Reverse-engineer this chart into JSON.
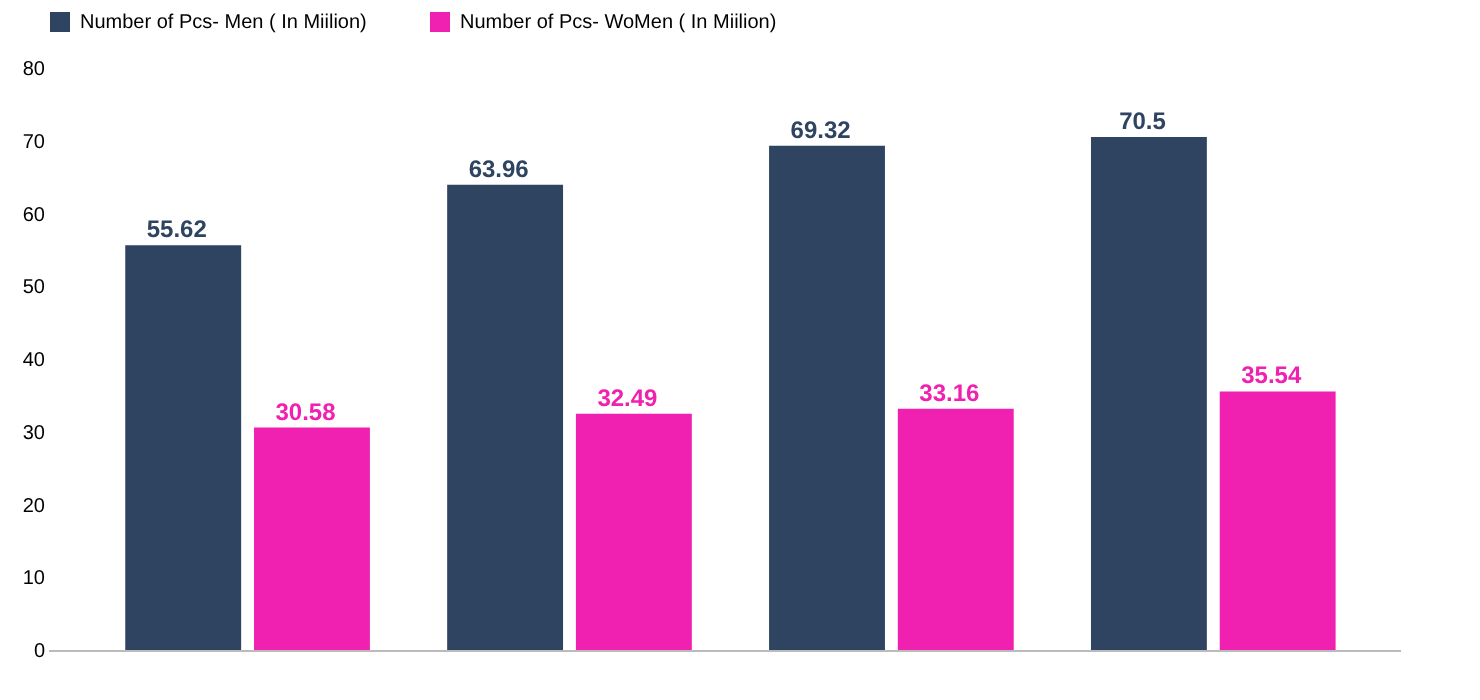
{
  "chart_data": {
    "type": "bar",
    "categories": [
      null,
      null,
      null,
      null
    ],
    "series": [
      {
        "name": "Number of Pcs- Men ( In Miilion)",
        "color": "#2e4460",
        "values": [
          55.62,
          63.96,
          69.32,
          70.5
        ]
      },
      {
        "name": "Number of Pcs- WoMen ( In Miilion)",
        "color": "#f020b0",
        "values": [
          30.58,
          32.49,
          33.16,
          35.54
        ]
      }
    ],
    "ylim": [
      0,
      80
    ],
    "yticks": [
      0,
      10,
      20,
      30,
      40,
      50,
      60,
      70,
      80
    ],
    "data_labels": true,
    "legend": "top",
    "grid": false
  }
}
